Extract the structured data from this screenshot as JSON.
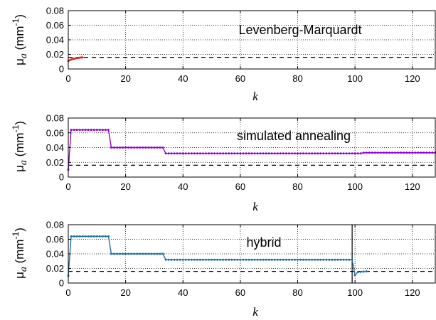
{
  "chart_data": [
    {
      "type": "line",
      "annotation": "Levenberg-Marquardt",
      "xlabel": "k",
      "ylabel": "μa (mm-1)",
      "xlim": [
        0,
        128
      ],
      "ylim": [
        0,
        0.08
      ],
      "xticks": [
        0,
        20,
        40,
        60,
        80,
        100,
        120
      ],
      "yticks": [
        0,
        0.02,
        0.04,
        0.06,
        0.08
      ],
      "grid": true,
      "reference_line": 0.016,
      "series": [
        {
          "color": "#d62728",
          "x": [
            0,
            0.5,
            1,
            1.5,
            2,
            2.5,
            3,
            3.5,
            4,
            4.5,
            5
          ],
          "y": [
            0.011,
            0.012,
            0.013,
            0.0135,
            0.014,
            0.0145,
            0.015,
            0.0153,
            0.0155,
            0.0157,
            0.0158
          ]
        }
      ]
    },
    {
      "type": "line",
      "annotation": "simulated annealing",
      "xlabel": "k",
      "ylabel": "μa (mm-1)",
      "xlim": [
        0,
        128
      ],
      "ylim": [
        0,
        0.08
      ],
      "xticks": [
        0,
        20,
        40,
        60,
        80,
        100,
        120
      ],
      "yticks": [
        0,
        0.02,
        0.04,
        0.06,
        0.08
      ],
      "grid": true,
      "reference_line": 0.016,
      "series": [
        {
          "color": "#9400d3",
          "segments": [
            {
              "from": 0,
              "to": 0,
              "start": 0.01,
              "end": 0.01
            },
            {
              "from": 1,
              "to": 14,
              "start": 0.064,
              "end": 0.064
            },
            {
              "from": 15,
              "to": 33,
              "start": 0.04,
              "end": 0.04
            },
            {
              "from": 34,
              "to": 102,
              "start": 0.032,
              "end": 0.032
            },
            {
              "from": 103,
              "to": 128,
              "start": 0.033,
              "end": 0.033
            }
          ]
        }
      ]
    },
    {
      "type": "line",
      "annotation": "hybrid",
      "xlabel": "k",
      "ylabel": "μa (mm-1)",
      "xlim": [
        0,
        128
      ],
      "ylim": [
        0,
        0.08
      ],
      "xticks": [
        0,
        20,
        40,
        60,
        80,
        100,
        120
      ],
      "yticks": [
        0,
        0.02,
        0.04,
        0.06,
        0.08
      ],
      "grid": true,
      "reference_line": 0.016,
      "vertical_line": 99,
      "series": [
        {
          "color": "#1f6f9f",
          "segments": [
            {
              "from": 0,
              "to": 0,
              "start": 0.01,
              "end": 0.01
            },
            {
              "from": 1,
              "to": 14,
              "start": 0.064,
              "end": 0.064
            },
            {
              "from": 15,
              "to": 33,
              "start": 0.04,
              "end": 0.04
            },
            {
              "from": 34,
              "to": 99,
              "start": 0.032,
              "end": 0.032
            },
            {
              "from": 100,
              "to": 100,
              "start": 0.011,
              "end": 0.011
            },
            {
              "from": 101,
              "to": 104,
              "start": 0.015,
              "end": 0.016
            }
          ]
        }
      ]
    }
  ]
}
